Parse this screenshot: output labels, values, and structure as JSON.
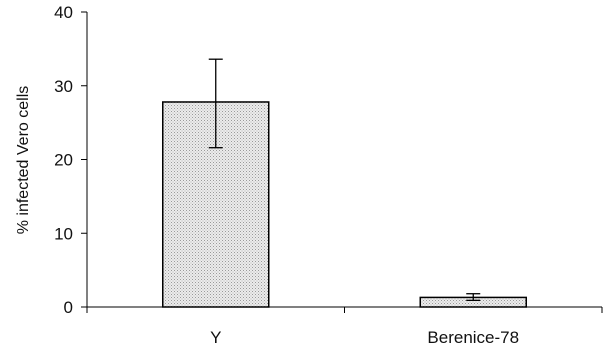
{
  "chart_data": {
    "type": "bar",
    "categories": [
      "Y",
      "Berenice-78"
    ],
    "values": [
      27.8,
      1.3
    ],
    "error_low": [
      21.6,
      0.9
    ],
    "error_high": [
      33.6,
      1.8
    ],
    "title": "",
    "xlabel": "",
    "ylabel": "% infected Vero cells",
    "ylim": [
      0,
      40
    ],
    "yticks": [
      0,
      10,
      20,
      30,
      40
    ],
    "grid": false,
    "bar_fill": "#e6e6e6",
    "bar_stroke": "#000000"
  }
}
